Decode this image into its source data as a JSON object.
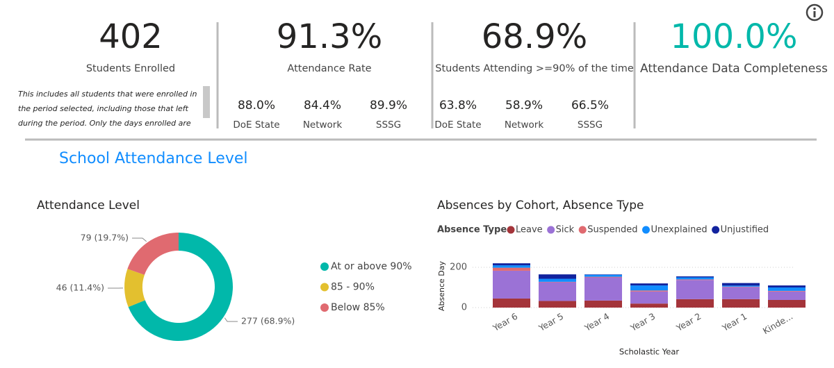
{
  "kpis": [
    {
      "value": "402",
      "label": "Students Enrolled"
    },
    {
      "value": "91.3%",
      "label": "Attendance Rate",
      "compare": [
        {
          "value": "88.0%",
          "label": "DoE State"
        },
        {
          "value": "84.4%",
          "label": "Network"
        },
        {
          "value": "89.9%",
          "label": "SSSG"
        }
      ]
    },
    {
      "value": "68.9%",
      "label": "Students Attending >=90% of the time",
      "compare": [
        {
          "value": "63.8%",
          "label": "DoE State"
        },
        {
          "value": "58.9%",
          "label": "Network"
        },
        {
          "value": "66.5%",
          "label": "SSSG"
        }
      ]
    },
    {
      "value": "100.0%",
      "label": "Attendance Data Completeness"
    }
  ],
  "note": [
    "This includes all students that were enrolled in",
    "the period selected, including those that left",
    "during the period. Only the days enrolled are"
  ],
  "section_title": "School Attendance Level",
  "chart_data": [
    {
      "type": "donut",
      "title": "Attendance Level",
      "categories": [
        "At or above 90%",
        "85 - 90%",
        "Below 85%"
      ],
      "values": [
        277,
        46,
        79
      ],
      "value_labels": [
        "277 (68.9%)",
        "46 (11.4%)",
        "79 (19.7%)"
      ],
      "colors": [
        "#01b8aa",
        "#e3c02f",
        "#e06a70"
      ]
    },
    {
      "type": "stacked_bar",
      "title": "Absences by Cohort, Absence Type",
      "legend_title": "Absence Type",
      "y_label": "Absence Day",
      "x_label": "Scholastic Year",
      "categories": [
        "Year 6",
        "Year 5",
        "Year 4",
        "Year 3",
        "Year 2",
        "Year 1",
        "Kinde..."
      ],
      "series": [
        {
          "name": "Leave",
          "color": "#a4343a",
          "values": [
            45,
            33,
            35,
            20,
            42,
            42,
            38
          ]
        },
        {
          "name": "Sick",
          "color": "#9b72d6",
          "values": [
            138,
            93,
            115,
            60,
            95,
            60,
            42
          ]
        },
        {
          "name": "Suspended",
          "color": "#e06a70",
          "values": [
            15,
            2,
            3,
            5,
            3,
            2,
            3
          ]
        },
        {
          "name": "Unexplained",
          "color": "#118dff",
          "values": [
            12,
            15,
            10,
            25,
            10,
            5,
            17
          ]
        },
        {
          "name": "Unjustified",
          "color": "#12239e",
          "values": [
            10,
            22,
            2,
            10,
            5,
            13,
            10
          ]
        }
      ],
      "ylim": [
        0,
        240
      ],
      "yticks": [
        0,
        200
      ],
      "grid": true
    }
  ]
}
